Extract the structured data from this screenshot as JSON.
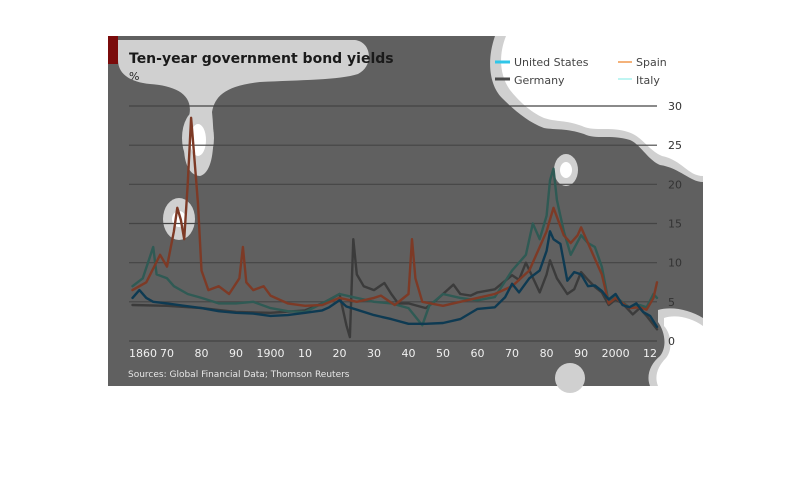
{
  "chart_data": {
    "type": "line",
    "title": "Ten-year government bond yields",
    "ylabel": "%",
    "source": "Sources: Global Financial Data; Thomson Reuters",
    "ylim": [
      0,
      30
    ],
    "y_ticks": [
      0,
      5,
      10,
      15,
      20,
      25,
      30
    ],
    "x_ticks": [
      "1860",
      "70",
      "80",
      "90",
      "1900",
      "10",
      "20",
      "30",
      "40",
      "50",
      "60",
      "70",
      "80",
      "90",
      "2000",
      "12"
    ],
    "x_tick_years": [
      1860,
      1870,
      1880,
      1890,
      1900,
      1910,
      1920,
      1930,
      1940,
      1950,
      1960,
      1970,
      1980,
      1990,
      2000,
      2012
    ],
    "xlim": [
      1859,
      2012
    ],
    "grid": true,
    "legend_position": "top-right",
    "series": [
      {
        "name": "United States",
        "legend_color": "#2fc6e8",
        "color": "#0e3a52",
        "points": [
          [
            1860,
            5.5
          ],
          [
            1862,
            6.5
          ],
          [
            1864,
            5.5
          ],
          [
            1866,
            5.0
          ],
          [
            1870,
            4.8
          ],
          [
            1875,
            4.5
          ],
          [
            1880,
            4.2
          ],
          [
            1885,
            3.8
          ],
          [
            1890,
            3.6
          ],
          [
            1895,
            3.5
          ],
          [
            1900,
            3.2
          ],
          [
            1905,
            3.3
          ],
          [
            1910,
            3.6
          ],
          [
            1915,
            3.9
          ],
          [
            1917,
            4.3
          ],
          [
            1920,
            5.2
          ],
          [
            1922,
            4.4
          ],
          [
            1925,
            4.0
          ],
          [
            1930,
            3.3
          ],
          [
            1935,
            2.8
          ],
          [
            1940,
            2.2
          ],
          [
            1945,
            2.2
          ],
          [
            1950,
            2.3
          ],
          [
            1955,
            2.8
          ],
          [
            1960,
            4.1
          ],
          [
            1965,
            4.3
          ],
          [
            1968,
            5.6
          ],
          [
            1970,
            7.3
          ],
          [
            1972,
            6.2
          ],
          [
            1975,
            8.0
          ],
          [
            1978,
            9.0
          ],
          [
            1980,
            11.5
          ],
          [
            1981,
            14.0
          ],
          [
            1982,
            13.0
          ],
          [
            1984,
            12.4
          ],
          [
            1986,
            7.7
          ],
          [
            1988,
            8.8
          ],
          [
            1990,
            8.5
          ],
          [
            1992,
            7.0
          ],
          [
            1994,
            7.1
          ],
          [
            1996,
            6.4
          ],
          [
            1998,
            5.3
          ],
          [
            2000,
            6.0
          ],
          [
            2002,
            4.6
          ],
          [
            2004,
            4.3
          ],
          [
            2006,
            4.8
          ],
          [
            2008,
            3.7
          ],
          [
            2010,
            3.2
          ],
          [
            2012,
            1.8
          ]
        ]
      },
      {
        "name": "Germany",
        "legend_color": "#4a4a4a",
        "color": "#3b3b3b",
        "points": [
          [
            1860,
            4.6
          ],
          [
            1870,
            4.5
          ],
          [
            1880,
            4.2
          ],
          [
            1890,
            3.7
          ],
          [
            1900,
            3.6
          ],
          [
            1910,
            3.9
          ],
          [
            1915,
            4.8
          ],
          [
            1918,
            5.5
          ],
          [
            1920,
            6.0
          ],
          [
            1922,
            2.0
          ],
          [
            1923,
            0.5
          ],
          [
            1924,
            13.0
          ],
          [
            1925,
            8.5
          ],
          [
            1927,
            7.0
          ],
          [
            1930,
            6.5
          ],
          [
            1933,
            7.4
          ],
          [
            1935,
            6.0
          ],
          [
            1937,
            4.8
          ],
          [
            1940,
            4.8
          ],
          [
            1945,
            4.2
          ],
          [
            1948,
            5.2
          ],
          [
            1950,
            6.0
          ],
          [
            1953,
            7.2
          ],
          [
            1955,
            6.0
          ],
          [
            1958,
            5.8
          ],
          [
            1960,
            6.2
          ],
          [
            1965,
            6.6
          ],
          [
            1970,
            8.4
          ],
          [
            1972,
            7.8
          ],
          [
            1974,
            10.0
          ],
          [
            1976,
            8.1
          ],
          [
            1978,
            6.2
          ],
          [
            1980,
            8.5
          ],
          [
            1981,
            10.3
          ],
          [
            1983,
            8.0
          ],
          [
            1986,
            6.0
          ],
          [
            1988,
            6.6
          ],
          [
            1990,
            8.8
          ],
          [
            1992,
            7.8
          ],
          [
            1994,
            6.9
          ],
          [
            1996,
            6.2
          ],
          [
            1998,
            4.6
          ],
          [
            2000,
            5.3
          ],
          [
            2002,
            4.8
          ],
          [
            2005,
            3.4
          ],
          [
            2007,
            4.2
          ],
          [
            2009,
            3.2
          ],
          [
            2012,
            1.5
          ]
        ]
      },
      {
        "name": "Spain",
        "legend_color": "#f4b27a",
        "color": "#7d3a26",
        "points": [
          [
            1860,
            6.5
          ],
          [
            1864,
            7.5
          ],
          [
            1868,
            11.0
          ],
          [
            1870,
            9.5
          ],
          [
            1872,
            14.0
          ],
          [
            1873,
            17.0
          ],
          [
            1874,
            15.5
          ],
          [
            1875,
            13.0
          ],
          [
            1876,
            20.0
          ],
          [
            1877,
            28.5
          ],
          [
            1878,
            23.0
          ],
          [
            1879,
            17.5
          ],
          [
            1880,
            9.0
          ],
          [
            1882,
            6.5
          ],
          [
            1885,
            7.0
          ],
          [
            1888,
            6.0
          ],
          [
            1891,
            8.0
          ],
          [
            1892,
            12.0
          ],
          [
            1893,
            7.5
          ],
          [
            1895,
            6.5
          ],
          [
            1898,
            7.0
          ],
          [
            1900,
            5.8
          ],
          [
            1905,
            4.8
          ],
          [
            1910,
            4.5
          ],
          [
            1915,
            4.6
          ],
          [
            1920,
            5.5
          ],
          [
            1925,
            5.0
          ],
          [
            1930,
            5.5
          ],
          [
            1932,
            5.8
          ],
          [
            1936,
            4.6
          ],
          [
            1940,
            6.0
          ],
          [
            1941,
            13.0
          ],
          [
            1942,
            8.0
          ],
          [
            1944,
            5.0
          ],
          [
            1950,
            4.5
          ],
          [
            1955,
            5.0
          ],
          [
            1960,
            5.5
          ],
          [
            1965,
            6.0
          ],
          [
            1970,
            7.0
          ],
          [
            1975,
            9.0
          ],
          [
            1978,
            12.0
          ],
          [
            1980,
            14.0
          ],
          [
            1981,
            15.5
          ],
          [
            1982,
            17.0
          ],
          [
            1985,
            13.5
          ],
          [
            1987,
            12.5
          ],
          [
            1989,
            13.5
          ],
          [
            1990,
            14.5
          ],
          [
            1992,
            12.5
          ],
          [
            1994,
            10.5
          ],
          [
            1996,
            8.5
          ],
          [
            1998,
            4.8
          ],
          [
            2000,
            5.5
          ],
          [
            2004,
            4.2
          ],
          [
            2007,
            4.3
          ],
          [
            2009,
            4.0
          ],
          [
            2011,
            5.5
          ],
          [
            2012,
            7.5
          ]
        ]
      },
      {
        "name": "Italy",
        "legend_color": "#bff5f2",
        "color": "#2f5a54",
        "points": [
          [
            1860,
            7.0
          ],
          [
            1863,
            8.0
          ],
          [
            1866,
            12.0
          ],
          [
            1867,
            8.5
          ],
          [
            1870,
            8.0
          ],
          [
            1872,
            7.0
          ],
          [
            1876,
            6.0
          ],
          [
            1880,
            5.5
          ],
          [
            1885,
            4.8
          ],
          [
            1890,
            4.8
          ],
          [
            1895,
            5.0
          ],
          [
            1900,
            4.2
          ],
          [
            1905,
            3.8
          ],
          [
            1910,
            3.7
          ],
          [
            1915,
            4.8
          ],
          [
            1920,
            6.0
          ],
          [
            1925,
            5.5
          ],
          [
            1930,
            5.0
          ],
          [
            1935,
            4.8
          ],
          [
            1940,
            4.2
          ],
          [
            1944,
            2.0
          ],
          [
            1946,
            4.5
          ],
          [
            1950,
            6.0
          ],
          [
            1955,
            5.5
          ],
          [
            1960,
            5.2
          ],
          [
            1965,
            5.6
          ],
          [
            1970,
            9.0
          ],
          [
            1974,
            11.0
          ],
          [
            1976,
            15.0
          ],
          [
            1978,
            13.0
          ],
          [
            1980,
            16.0
          ],
          [
            1981,
            20.5
          ],
          [
            1982,
            22.0
          ],
          [
            1983,
            18.0
          ],
          [
            1985,
            14.0
          ],
          [
            1987,
            11.0
          ],
          [
            1990,
            13.5
          ],
          [
            1992,
            12.5
          ],
          [
            1994,
            12.0
          ],
          [
            1996,
            9.5
          ],
          [
            1998,
            4.9
          ],
          [
            2000,
            5.6
          ],
          [
            2004,
            4.3
          ],
          [
            2007,
            4.6
          ],
          [
            2009,
            4.3
          ],
          [
            2011,
            6.0
          ],
          [
            2012,
            5.5
          ]
        ]
      }
    ]
  }
}
